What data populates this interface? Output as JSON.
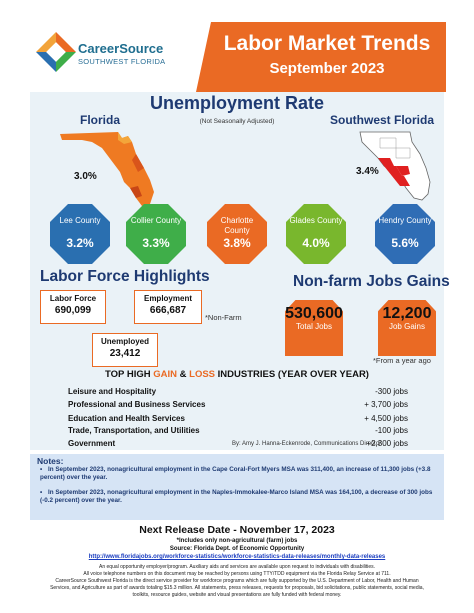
{
  "header": {
    "brand_name": "CareerSource",
    "brand_sub": "SOUTHWEST FLORIDA",
    "title": "Labor Market Trends",
    "subtitle": "September 2023"
  },
  "unemployment": {
    "heading": "Unemployment Rate",
    "note": "(Not Seasonally Adjusted)",
    "florida_label": "Florida",
    "florida_rate": "3.0%",
    "swfl_label": "Southwest Florida",
    "swfl_rate": "3.4%",
    "counties": [
      {
        "name": "Lee County",
        "rate": "3.2%",
        "color": "#2a6fb0"
      },
      {
        "name": "Collier County",
        "rate": "3.3%",
        "color": "#3fae49"
      },
      {
        "name": "Charlotte County",
        "rate": "3.8%",
        "color": "#ea6a24"
      },
      {
        "name": "Glades County",
        "rate": "4.0%",
        "color": "#79b72d"
      },
      {
        "name": "Hendry County",
        "rate": "5.6%",
        "color": "#2f6db5"
      }
    ]
  },
  "labor_force": {
    "heading": "Labor Force Highlights",
    "labor_force_label": "Labor Force",
    "labor_force_value": "690,099",
    "employment_label": "Employment",
    "employment_value": "666,687",
    "unemployed_label": "Unemployed",
    "unemployed_value": "23,412",
    "nonfarm_note": "*Non-Farm"
  },
  "jobs": {
    "heading": "Non-farm Jobs Gains",
    "total_value": "530,600",
    "total_label": "Total Jobs",
    "gain_value": "12,200",
    "gain_label": "Job Gains",
    "note": "*From a year ago"
  },
  "industries": {
    "heading_pre": "TOP HIGH",
    "heading_gain": "GAIN",
    "heading_amp": "&",
    "heading_loss": "LOSS",
    "heading_post": "INDUSTRIES (YEAR OVER YEAR)",
    "rows": [
      {
        "name": "Leisure and Hospitality",
        "value": "-300 jobs"
      },
      {
        "name": "Professional and Business Services",
        "value": "+ 3,700 jobs"
      },
      {
        "name": "Education and Health Services",
        "value": "+ 4,500 jobs"
      },
      {
        "name": "Trade, Transportation, and Utilities",
        "value": "-100 jobs"
      },
      {
        "name": "Government",
        "value": "+2,300 jobs"
      }
    ],
    "credit": "By: Amy J. Hanna-Eckenrode, Communications Director"
  },
  "notes": {
    "heading": "Notes:",
    "items": [
      "In September 2023, nonagricultural employment in the Cape Coral-Fort Myers MSA was 311,400, an increase of 11,300 jobs (+3.8 percent) over the year.",
      "In September 2023, nonagricultural employment in the Naples-Immokalee-Marco Island MSA was 164,100, a decrease of 300 jobs (-0.2 percent) over the year."
    ]
  },
  "footer": {
    "release_date": "Next Release Date - November 17, 2023",
    "line1": "*Includes only non-agricultural (farm) jobs",
    "line2": "Source: Florida Dept. of Economic Opportunity",
    "url": "http://www.floridajobs.org/workforce-statistics/workforce-statistics-data-releases/monthly-data-releases",
    "small1": "An equal opportunity employer/program. Auxiliary aids and services are available upon request to individuals with disabilities.",
    "small2": "All voice telephone numbers on this document may be reached by persons using TTY/TDD equipment via the Florida Relay Service at 711.",
    "small3": "CareerSource Southwest Florida is the direct service provider for workforce programs which are fully supported by the U.S. Department of Labor, Health and Human",
    "small4": "Services, and Agriculture as part of awards totaling $15.3 million. All statements, press releases, requests for proposals, bid solicitations, public statements, social media,",
    "small5": "toolkits, resource guides, website and visual presentations are fully funded with federal money."
  }
}
